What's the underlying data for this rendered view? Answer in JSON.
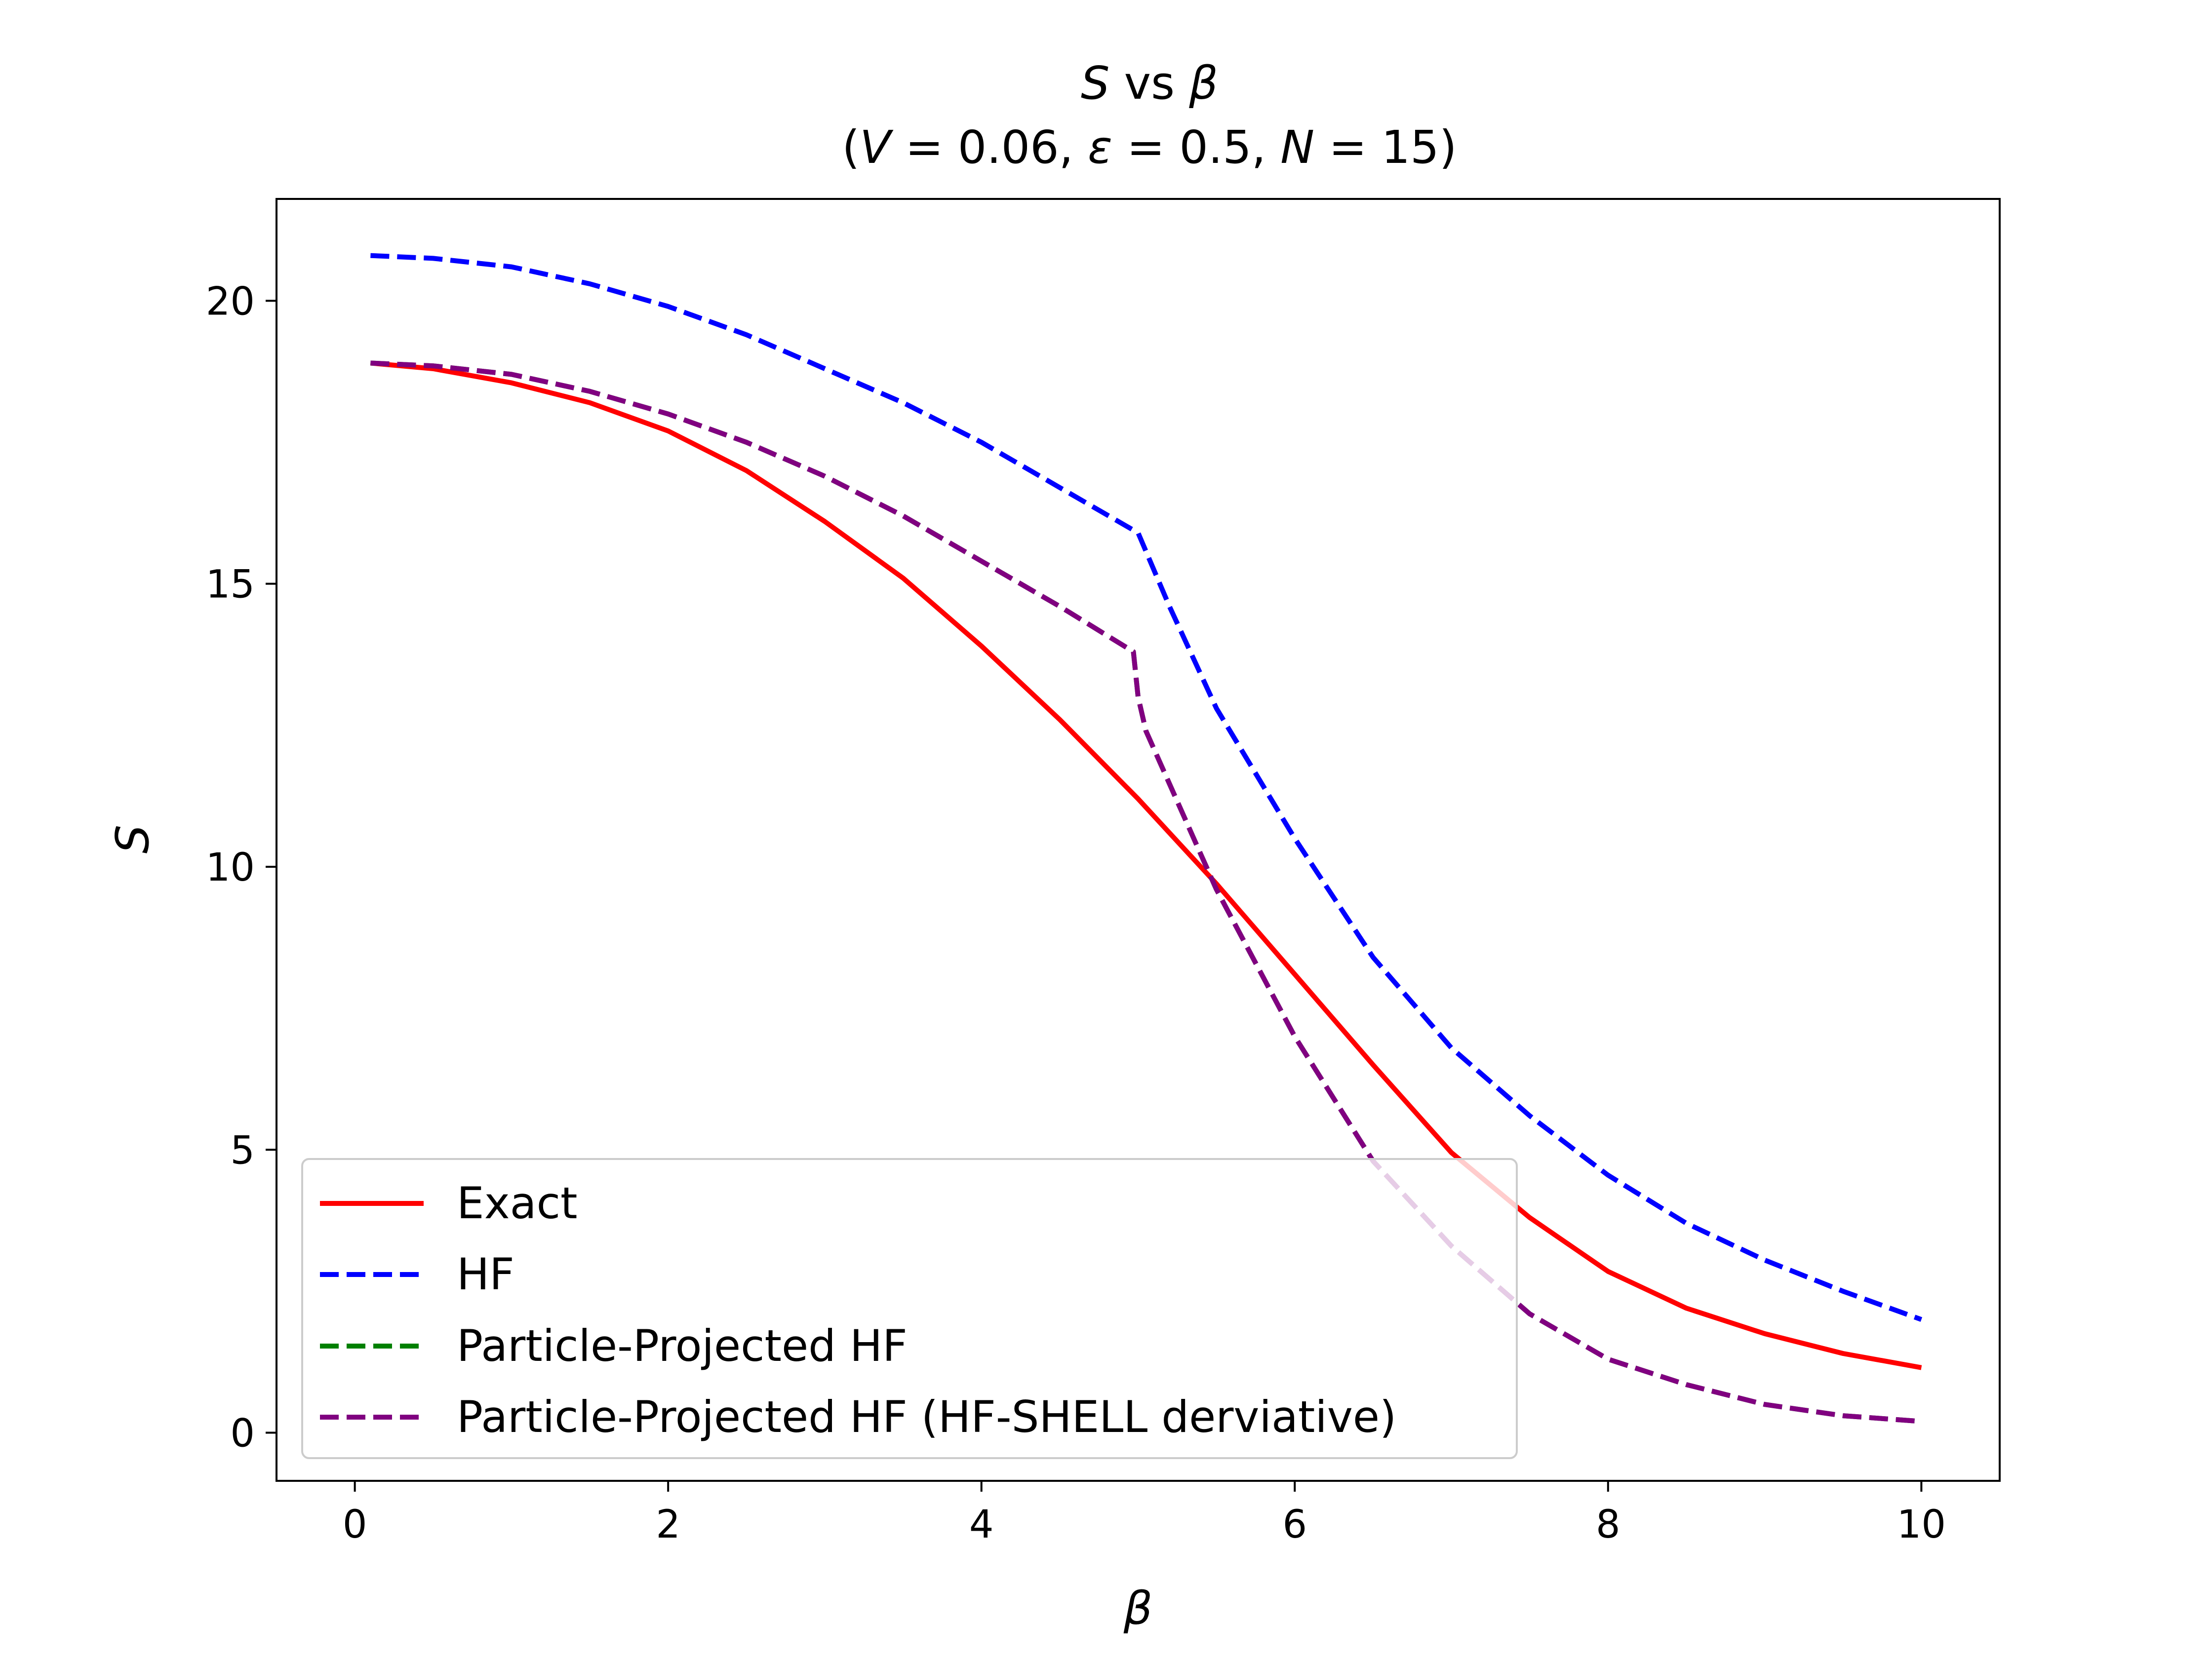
{
  "chart_data": {
    "type": "line",
    "title": {
      "line1": {
        "pre": "",
        "var1": "S",
        "mid": " vs ",
        "var2": "β"
      },
      "line2": {
        "open": "(",
        "v_sym": "V",
        "v_eq": " = 0.06, ",
        "e_sym": "ε",
        "e_eq": " = 0.5, ",
        "n_sym": "N",
        "n_eq": " = 15)"
      }
    },
    "xlabel": "β",
    "ylabel": "S",
    "xlim": [
      -0.5,
      10.5
    ],
    "ylim": [
      -0.85,
      21.8
    ],
    "xticks": [
      0,
      2,
      4,
      6,
      8,
      10
    ],
    "xtick_labels": [
      "0",
      "2",
      "4",
      "6",
      "8",
      "10"
    ],
    "yticks": [
      0,
      5,
      10,
      15,
      20
    ],
    "ytick_labels": [
      "0",
      "5",
      "10",
      "15",
      "20"
    ],
    "grid": false,
    "legend_position": "lower-left",
    "series": [
      {
        "name": "Exact",
        "color": "#ff0000",
        "style": "solid",
        "x": [
          0.1,
          0.5,
          1.0,
          1.5,
          2.0,
          2.5,
          3.0,
          3.5,
          4.0,
          4.5,
          5.0,
          5.5,
          6.0,
          6.5,
          7.0,
          7.5,
          8.0,
          8.5,
          9.0,
          9.5,
          10.0
        ],
        "y": [
          18.9,
          18.8,
          18.55,
          18.2,
          17.7,
          17.0,
          16.1,
          15.1,
          13.9,
          12.6,
          11.2,
          9.7,
          8.1,
          6.5,
          4.95,
          3.8,
          2.85,
          2.2,
          1.75,
          1.4,
          1.15
        ]
      },
      {
        "name": "HF",
        "color": "#0000ff",
        "style": "dashed",
        "x": [
          0.1,
          0.5,
          1.0,
          1.5,
          2.0,
          2.5,
          3.0,
          3.5,
          4.0,
          4.5,
          5.0,
          5.2,
          5.5,
          6.0,
          6.5,
          7.0,
          7.5,
          8.0,
          8.5,
          9.0,
          9.5,
          10.0
        ],
        "y": [
          20.8,
          20.75,
          20.6,
          20.3,
          19.9,
          19.4,
          18.8,
          18.2,
          17.5,
          16.7,
          15.9,
          14.6,
          12.8,
          10.5,
          8.4,
          6.8,
          5.6,
          4.55,
          3.7,
          3.05,
          2.5,
          2.0
        ]
      },
      {
        "name": "Particle-Projected HF",
        "color": "#008000",
        "style": "dashed",
        "x": [
          0.1,
          0.5,
          1.0,
          1.5,
          2.0,
          2.5,
          3.0,
          3.5,
          4.0,
          4.5,
          4.97,
          5.0,
          5.05,
          5.5,
          6.0,
          6.5,
          7.0,
          7.5,
          8.0,
          8.5,
          9.0,
          9.5,
          10.0
        ],
        "y": [
          18.9,
          18.85,
          18.7,
          18.4,
          18.0,
          17.5,
          16.9,
          16.2,
          15.4,
          14.6,
          13.8,
          13.0,
          12.4,
          9.6,
          7.0,
          4.8,
          3.3,
          2.1,
          1.3,
          0.85,
          0.5,
          0.3,
          0.2
        ]
      },
      {
        "name": "Particle-Projected HF (HF-SHELL derviative)",
        "color": "#800080",
        "style": "dashed",
        "x": [
          0.1,
          0.5,
          1.0,
          1.5,
          2.0,
          2.5,
          3.0,
          3.5,
          4.0,
          4.5,
          4.97,
          5.0,
          5.05,
          5.5,
          6.0,
          6.5,
          7.0,
          7.5,
          8.0,
          8.5,
          9.0,
          9.5,
          10.0
        ],
        "y": [
          18.9,
          18.85,
          18.7,
          18.4,
          18.0,
          17.5,
          16.9,
          16.2,
          15.4,
          14.6,
          13.8,
          13.0,
          12.4,
          9.6,
          7.0,
          4.8,
          3.3,
          2.1,
          1.3,
          0.85,
          0.5,
          0.3,
          0.2
        ]
      }
    ]
  }
}
